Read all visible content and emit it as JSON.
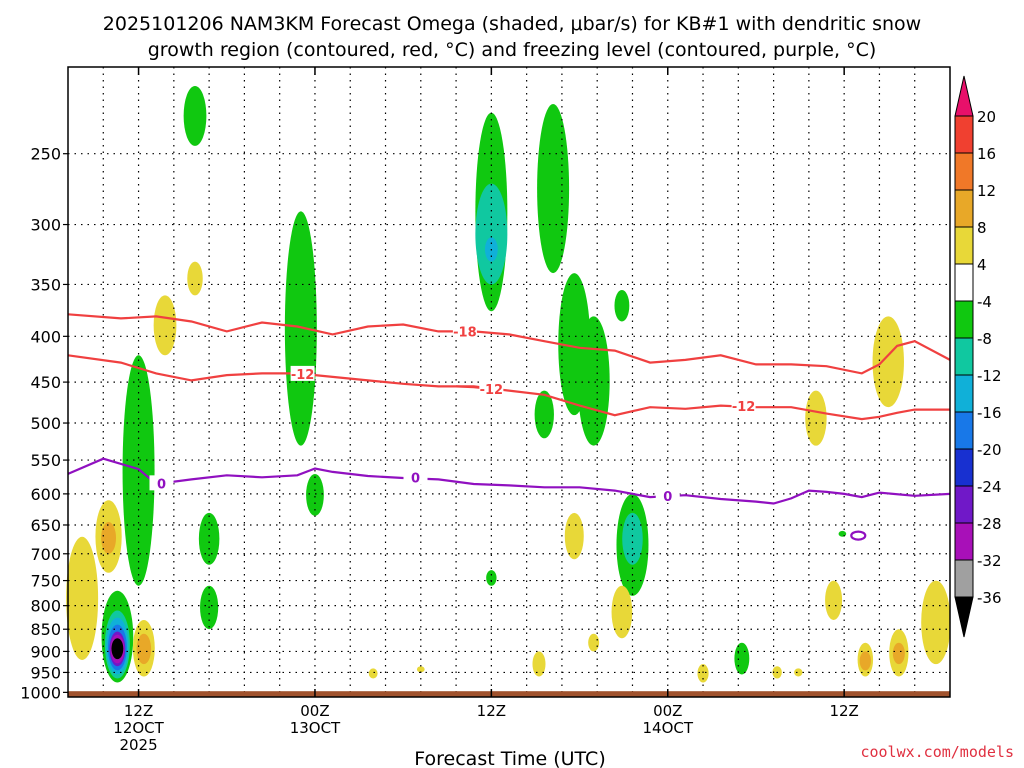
{
  "chart_data": {
    "type": "heatmap",
    "title_line1": "2025101206 NAM3KM Forecast Omega (shaded, μbar/s) for KB#1 with dendritic snow",
    "title_line2": "growth region (contoured, red, °C) and freezing level (contoured, purple, °C)",
    "xlabel": "Forecast Time (UTC)",
    "credit": "coolwx.com/models",
    "x_hours_range": [
      -2,
      48
    ],
    "y_pressure_range": [
      1012,
      200
    ],
    "y_ticks": [
      250,
      300,
      350,
      400,
      450,
      500,
      550,
      600,
      650,
      700,
      750,
      800,
      850,
      900,
      950,
      1000
    ],
    "x_ticks": [
      {
        "hour": 2,
        "lines": [
          "12Z",
          "12OCT",
          "2025"
        ]
      },
      {
        "hour": 12,
        "lines": [
          "00Z",
          "13OCT"
        ]
      },
      {
        "hour": 22,
        "lines": [
          "12Z"
        ]
      },
      {
        "hour": 32,
        "lines": [
          "00Z",
          "14OCT"
        ]
      },
      {
        "hour": 42,
        "lines": [
          "12Z"
        ]
      }
    ],
    "colorbar": {
      "labels": [
        "20",
        "16",
        "12",
        "8",
        "4",
        "-4",
        "-8",
        "-12",
        "-16",
        "-20",
        "-24",
        "-28",
        "-32",
        "-36"
      ],
      "colors": [
        "#e8106a",
        "#f04030",
        "#f07828",
        "#e8a828",
        "#e8d838",
        "#ffffff",
        "#10c810",
        "#10c8a0",
        "#10b0d8",
        "#1878e8",
        "#1830d0",
        "#7018c8",
        "#a810b8",
        "#a0a0a0",
        "#000000"
      ]
    },
    "isotherms": [
      {
        "label": "-18",
        "color": "#f04040",
        "label_hour": 20.5,
        "points": [
          [
            -2,
            378
          ],
          [
            1,
            382
          ],
          [
            3,
            380
          ],
          [
            5,
            385
          ],
          [
            7,
            395
          ],
          [
            9,
            386
          ],
          [
            11,
            390
          ],
          [
            13,
            398
          ],
          [
            15,
            390
          ],
          [
            17,
            388
          ],
          [
            19,
            395
          ],
          [
            21,
            395
          ],
          [
            23,
            398
          ],
          [
            25,
            405
          ],
          [
            27,
            412
          ],
          [
            29,
            415
          ],
          [
            31,
            428
          ],
          [
            33,
            425
          ],
          [
            35,
            420
          ],
          [
            37,
            430
          ],
          [
            39,
            430
          ],
          [
            41,
            432
          ],
          [
            43,
            440
          ],
          [
            44,
            430
          ],
          [
            45,
            410
          ],
          [
            46,
            405
          ],
          [
            48,
            425
          ]
        ]
      },
      {
        "label": "-12",
        "color": "#f04040",
        "label_hour": 11.3,
        "points": [
          [
            -2,
            420
          ],
          [
            1,
            428
          ],
          [
            3,
            440
          ],
          [
            5,
            448
          ],
          [
            7,
            442
          ],
          [
            9,
            440
          ],
          [
            11,
            440
          ],
          [
            13,
            444
          ],
          [
            15,
            448
          ],
          [
            17,
            452
          ],
          [
            19,
            455
          ],
          [
            21,
            455
          ],
          [
            23,
            460
          ],
          [
            25,
            465
          ],
          [
            27,
            478
          ],
          [
            29,
            490
          ],
          [
            31,
            480
          ],
          [
            33,
            482
          ],
          [
            35,
            478
          ],
          [
            37,
            480
          ],
          [
            39,
            480
          ],
          [
            41,
            488
          ],
          [
            43,
            495
          ],
          [
            44,
            492
          ],
          [
            45,
            487
          ],
          [
            46,
            483
          ],
          [
            48,
            483
          ]
        ]
      },
      {
        "label": "-12",
        "color": "#f04040",
        "label_hour": 22.0,
        "points": [
          [
            20,
            455
          ],
          [
            21,
            456
          ],
          [
            22,
            458
          ]
        ]
      },
      {
        "label": "-12",
        "color": "#f04040",
        "label_hour": 36.3,
        "points": [
          [
            36,
            478
          ],
          [
            36.5,
            479
          ],
          [
            37,
            480
          ]
        ]
      },
      {
        "label": "0",
        "color": "#9010c0",
        "label_hour": 3.3,
        "points": [
          [
            -2,
            570
          ],
          [
            0,
            548
          ],
          [
            2,
            563
          ],
          [
            3,
            585
          ],
          [
            5,
            578
          ],
          [
            7,
            572
          ],
          [
            9,
            575
          ],
          [
            11,
            572
          ],
          [
            12,
            562
          ],
          [
            13,
            567
          ],
          [
            15,
            573
          ],
          [
            17,
            576
          ],
          [
            19,
            578
          ],
          [
            21,
            585
          ],
          [
            23,
            587
          ],
          [
            25,
            590
          ],
          [
            27,
            590
          ],
          [
            29,
            595
          ],
          [
            31,
            605
          ],
          [
            33,
            602
          ],
          [
            35,
            608
          ],
          [
            37,
            612
          ],
          [
            38,
            615
          ],
          [
            39,
            607
          ],
          [
            40,
            595
          ],
          [
            41,
            597
          ],
          [
            42,
            600
          ],
          [
            43,
            605
          ],
          [
            44,
            598
          ],
          [
            46,
            603
          ],
          [
            48,
            600
          ]
        ]
      },
      {
        "label": "0",
        "color": "#9010c0",
        "label_hour": 17.7,
        "points": [
          [
            17.5,
            575
          ],
          [
            17.8,
            575
          ]
        ]
      },
      {
        "label": "0",
        "color": "#9010c0",
        "label_hour": 32.0,
        "points": [
          [
            31.9,
            603
          ],
          [
            32.1,
            603
          ]
        ]
      }
    ],
    "shaded_regions": [
      {
        "value": -4,
        "hour": 0.8,
        "p0": 770,
        "p1": 975
      },
      {
        "value": -8,
        "hour": 0.8,
        "p0": 810,
        "p1": 965
      },
      {
        "value": -12,
        "hour": 0.8,
        "p0": 825,
        "p1": 955
      },
      {
        "value": -16,
        "hour": 0.8,
        "p0": 840,
        "p1": 945
      },
      {
        "value": -24,
        "hour": 0.8,
        "p0": 855,
        "p1": 935
      },
      {
        "value": -28,
        "hour": 0.8,
        "p0": 862,
        "p1": 928
      },
      {
        "value": -36,
        "hour": 0.8,
        "p0": 870,
        "p1": 918
      },
      {
        "value": -4,
        "hour": 2.0,
        "p0": 420,
        "p1": 760
      },
      {
        "value": -4,
        "hour": 2.5,
        "p0": 550,
        "p1": 590
      },
      {
        "value": -4,
        "hour": 5.2,
        "p0": 210,
        "p1": 245
      },
      {
        "value": -4,
        "hour": 6.0,
        "p0": 630,
        "p1": 720
      },
      {
        "value": -4,
        "hour": 6.0,
        "p0": 760,
        "p1": 850
      },
      {
        "value": -4,
        "hour": 11.2,
        "p0": 290,
        "p1": 530
      },
      {
        "value": -4,
        "hour": 12.0,
        "p0": 570,
        "p1": 635
      },
      {
        "value": -4,
        "hour": 22.0,
        "p0": 225,
        "p1": 375
      },
      {
        "value": -8,
        "hour": 22.0,
        "p0": 270,
        "p1": 350
      },
      {
        "value": -12,
        "hour": 22.0,
        "p0": 310,
        "p1": 330
      },
      {
        "value": -4,
        "hour": 25.5,
        "p0": 220,
        "p1": 340
      },
      {
        "value": -4,
        "hour": 26.7,
        "p0": 340,
        "p1": 490
      },
      {
        "value": -4,
        "hour": 27.8,
        "p0": 380,
        "p1": 530
      },
      {
        "value": -4,
        "hour": 25.0,
        "p0": 460,
        "p1": 520
      },
      {
        "value": -4,
        "hour": 30.0,
        "p0": 600,
        "p1": 780
      },
      {
        "value": -8,
        "hour": 30.0,
        "p0": 630,
        "p1": 720
      },
      {
        "value": -4,
        "hour": 22.0,
        "p0": 730,
        "p1": 760
      },
      {
        "value": -4,
        "hour": 29.4,
        "p0": 355,
        "p1": 385
      },
      {
        "value": -4,
        "hour": 36.2,
        "p0": 880,
        "p1": 955
      },
      {
        "value": -4,
        "hour": 41.9,
        "p0": 660,
        "p1": 670
      },
      {
        "value": 4,
        "hour": -1.2,
        "p0": 670,
        "p1": 920
      },
      {
        "value": 4,
        "hour": 0.3,
        "p0": 610,
        "p1": 735
      },
      {
        "value": 8,
        "hour": 0.3,
        "p0": 645,
        "p1": 700
      },
      {
        "value": 4,
        "hour": 2.3,
        "p0": 830,
        "p1": 960
      },
      {
        "value": 8,
        "hour": 2.3,
        "p0": 860,
        "p1": 930
      },
      {
        "value": 4,
        "hour": 3.5,
        "p0": 360,
        "p1": 420
      },
      {
        "value": 4,
        "hour": 5.2,
        "p0": 330,
        "p1": 360
      },
      {
        "value": 4,
        "hour": 24.7,
        "p0": 900,
        "p1": 960
      },
      {
        "value": 4,
        "hour": 26.7,
        "p0": 630,
        "p1": 710
      },
      {
        "value": 4,
        "hour": 27.8,
        "p0": 860,
        "p1": 900
      },
      {
        "value": 4,
        "hour": 29.4,
        "p0": 760,
        "p1": 870
      },
      {
        "value": 4,
        "hour": 34.0,
        "p0": 930,
        "p1": 975
      },
      {
        "value": 4,
        "hour": 38.2,
        "p0": 935,
        "p1": 965
      },
      {
        "value": 4,
        "hour": 39.4,
        "p0": 940,
        "p1": 960
      },
      {
        "value": 4,
        "hour": 40.4,
        "p0": 460,
        "p1": 530
      },
      {
        "value": 4,
        "hour": 41.4,
        "p0": 750,
        "p1": 830
      },
      {
        "value": 4,
        "hour": 43.2,
        "p0": 880,
        "p1": 960
      },
      {
        "value": 8,
        "hour": 43.2,
        "p0": 900,
        "p1": 945
      },
      {
        "value": 4,
        "hour": 44.5,
        "p0": 380,
        "p1": 480
      },
      {
        "value": 4,
        "hour": 45.1,
        "p0": 850,
        "p1": 960
      },
      {
        "value": 8,
        "hour": 45.1,
        "p0": 880,
        "p1": 930
      },
      {
        "value": 4,
        "hour": 47.2,
        "p0": 750,
        "p1": 930
      },
      {
        "value": 4,
        "hour": 18.0,
        "p0": 935,
        "p1": 950
      },
      {
        "value": 4,
        "hour": 15.3,
        "p0": 940,
        "p1": 965
      }
    ],
    "terrain": {
      "color": "#a0522d",
      "top_pressure": 997
    }
  }
}
